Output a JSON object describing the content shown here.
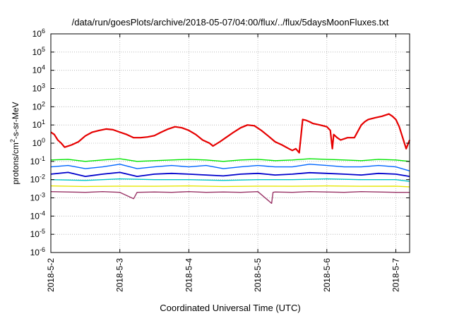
{
  "chart_data": {
    "type": "line",
    "title": "/data/run/goesPlots/archive/2018-05-07/04:00/flux/../flux/5daysMoonFluxes.txt",
    "xlabel": "Coordinated Universal Time (UTC)",
    "ylabel": "protons/cm2-s-sr-MeV",
    "ylabel_base": "protons/cm",
    "ylabel_sup": "2",
    "ylabel_rest": "-s-sr-MeV",
    "y_scale": "log",
    "ylim": [
      1e-06,
      1000000.0
    ],
    "xlim": [
      0,
      5.2
    ],
    "grid": true,
    "legend": "none",
    "y_ticks": [
      {
        "exp": "-6",
        "v": 1e-06
      },
      {
        "exp": "-5",
        "v": 1e-05
      },
      {
        "exp": "-4",
        "v": 0.0001
      },
      {
        "exp": "-3",
        "v": 0.001
      },
      {
        "exp": "-2",
        "v": 0.01
      },
      {
        "exp": "-1",
        "v": 0.1
      },
      {
        "exp": "0",
        "v": 1
      },
      {
        "exp": "1",
        "v": 10
      },
      {
        "exp": "2",
        "v": 100
      },
      {
        "exp": "3",
        "v": 1000
      },
      {
        "exp": "4",
        "v": 10000
      },
      {
        "exp": "5",
        "v": 100000
      },
      {
        "exp": "6",
        "v": 1000000
      }
    ],
    "x_ticks": [
      {
        "label": "2018-5-2",
        "v": 0
      },
      {
        "label": "2018-5-3",
        "v": 1
      },
      {
        "label": "2018-5-4",
        "v": 2
      },
      {
        "label": "2018-5-5",
        "v": 3
      },
      {
        "label": "2018-5-6",
        "v": 4
      },
      {
        "label": "2018-5-7",
        "v": 5
      }
    ],
    "series": [
      {
        "color": "#e60000",
        "width": 2.2,
        "x": [
          0,
          0.05,
          0.1,
          0.15,
          0.2,
          0.3,
          0.4,
          0.5,
          0.6,
          0.7,
          0.8,
          0.9,
          1.0,
          1.1,
          1.2,
          1.3,
          1.4,
          1.5,
          1.6,
          1.7,
          1.8,
          1.9,
          2.0,
          2.1,
          2.2,
          2.3,
          2.35,
          2.45,
          2.55,
          2.65,
          2.75,
          2.85,
          2.95,
          3.05,
          3.15,
          3.25,
          3.35,
          3.45,
          3.5,
          3.55,
          3.6,
          3.62,
          3.65,
          3.7,
          3.75,
          3.8,
          3.9,
          4.0,
          4.05,
          4.08,
          4.1,
          4.15,
          4.2,
          4.3,
          4.4,
          4.5,
          4.55,
          4.6,
          4.7,
          4.8,
          4.9,
          4.95,
          5.0,
          5.05,
          5.1,
          5.15,
          5.2
        ],
        "y": [
          4,
          3,
          1.5,
          1.0,
          0.6,
          0.8,
          1.2,
          2.5,
          4,
          5,
          6,
          5.5,
          4,
          3,
          2,
          2,
          2.2,
          2.6,
          4,
          6,
          8,
          7,
          5,
          3,
          1.5,
          1.0,
          0.7,
          1.2,
          2.2,
          4,
          7,
          10,
          9,
          5,
          2.5,
          1.2,
          0.8,
          0.5,
          0.4,
          0.5,
          0.3,
          1.5,
          20,
          18,
          15,
          12,
          10,
          8,
          5,
          0.5,
          3,
          2,
          1.5,
          2,
          2,
          10,
          15,
          20,
          25,
          30,
          40,
          30,
          20,
          8,
          2,
          0.5,
          1.5
        ]
      },
      {
        "color": "#00e600",
        "width": 1.4,
        "x": [
          0,
          0.25,
          0.5,
          0.75,
          1.0,
          1.25,
          1.5,
          1.75,
          2.0,
          2.25,
          2.5,
          2.75,
          3.0,
          3.25,
          3.5,
          3.75,
          4.0,
          4.25,
          4.5,
          4.75,
          5.0,
          5.2
        ],
        "y": [
          0.12,
          0.13,
          0.1,
          0.12,
          0.14,
          0.1,
          0.11,
          0.12,
          0.13,
          0.12,
          0.1,
          0.12,
          0.13,
          0.11,
          0.12,
          0.14,
          0.13,
          0.12,
          0.11,
          0.13,
          0.12,
          0.1
        ]
      },
      {
        "color": "#0066ff",
        "width": 1.4,
        "x": [
          0,
          0.25,
          0.5,
          0.75,
          1.0,
          1.25,
          1.5,
          1.75,
          2.0,
          2.25,
          2.5,
          2.75,
          3.0,
          3.25,
          3.5,
          3.75,
          4.0,
          4.25,
          4.5,
          4.75,
          5.0,
          5.2
        ],
        "y": [
          0.05,
          0.06,
          0.04,
          0.05,
          0.07,
          0.04,
          0.05,
          0.06,
          0.05,
          0.06,
          0.04,
          0.05,
          0.06,
          0.05,
          0.05,
          0.07,
          0.06,
          0.05,
          0.05,
          0.06,
          0.05,
          0.03
        ]
      },
      {
        "color": "#0000cc",
        "width": 1.8,
        "x": [
          0,
          0.25,
          0.5,
          0.75,
          1.0,
          1.25,
          1.5,
          1.75,
          2.0,
          2.25,
          2.5,
          2.75,
          3.0,
          3.25,
          3.5,
          3.75,
          4.0,
          4.25,
          4.5,
          4.75,
          5.0,
          5.2
        ],
        "y": [
          0.02,
          0.025,
          0.015,
          0.02,
          0.025,
          0.015,
          0.02,
          0.022,
          0.02,
          0.018,
          0.016,
          0.02,
          0.022,
          0.018,
          0.02,
          0.024,
          0.022,
          0.02,
          0.018,
          0.022,
          0.02,
          0.015
        ]
      },
      {
        "color": "#00c8c8",
        "width": 1.4,
        "x": [
          0,
          0.5,
          1.0,
          1.5,
          2.0,
          2.5,
          3.0,
          3.5,
          4.0,
          4.5,
          5.0,
          5.2
        ],
        "y": [
          0.01,
          0.009,
          0.011,
          0.01,
          0.01,
          0.009,
          0.01,
          0.01,
          0.011,
          0.01,
          0.01,
          0.008
        ]
      },
      {
        "color": "#e6e600",
        "width": 1.4,
        "x": [
          0,
          0.5,
          1.0,
          1.5,
          2.0,
          2.5,
          3.0,
          3.5,
          4.0,
          4.5,
          5.0,
          5.2
        ],
        "y": [
          0.0045,
          0.0042,
          0.0044,
          0.0043,
          0.0045,
          0.0042,
          0.0044,
          0.0043,
          0.0045,
          0.0043,
          0.0044,
          0.004
        ]
      },
      {
        "color": "#993366",
        "width": 1.4,
        "x": [
          0,
          0.25,
          0.5,
          0.75,
          1.0,
          1.2,
          1.25,
          1.5,
          1.75,
          2.0,
          2.25,
          2.5,
          2.75,
          3.0,
          3.2,
          3.22,
          3.25,
          3.5,
          3.75,
          4.0,
          4.25,
          4.5,
          4.75,
          5.0,
          5.2
        ],
        "y": [
          0.0022,
          0.0021,
          0.002,
          0.0022,
          0.002,
          0.0009,
          0.002,
          0.0021,
          0.002,
          0.0022,
          0.002,
          0.0021,
          0.002,
          0.0022,
          0.0005,
          0.002,
          0.0021,
          0.002,
          0.0022,
          0.0021,
          0.002,
          0.0022,
          0.0021,
          0.002,
          0.002
        ]
      }
    ]
  }
}
